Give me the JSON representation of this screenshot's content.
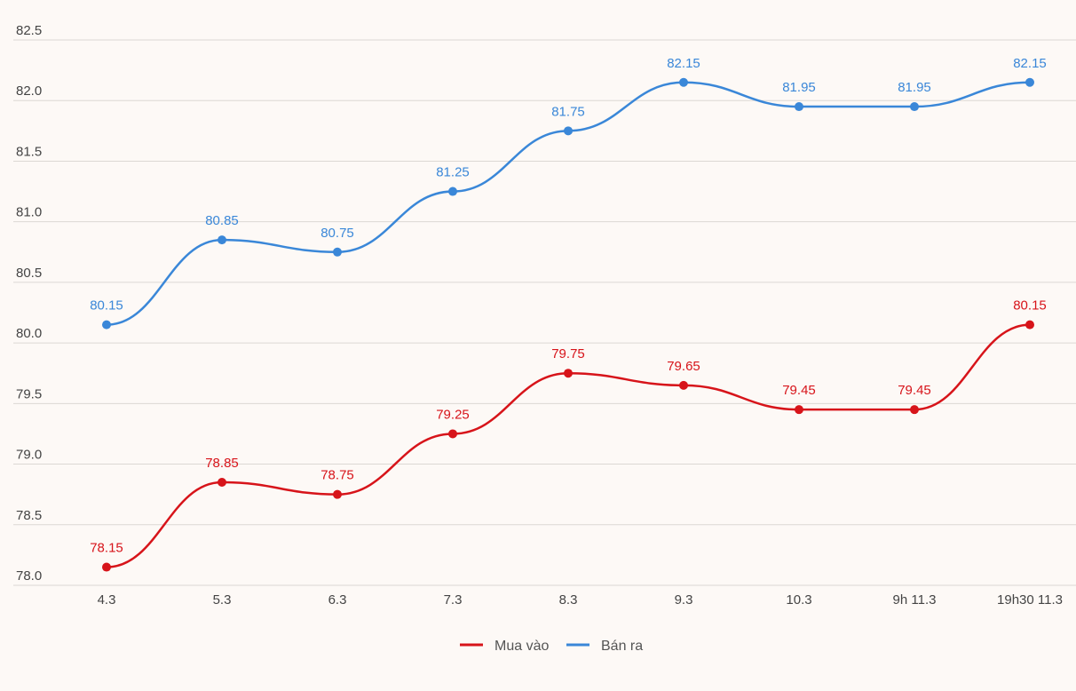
{
  "chart_data": {
    "type": "line",
    "categories": [
      "4.3",
      "5.3",
      "6.3",
      "7.3",
      "8.3",
      "9.3",
      "10.3",
      "9h 11.3",
      "19h30 11.3"
    ],
    "series": [
      {
        "name": "Mua vào",
        "color": "#d7141a",
        "values": [
          78.15,
          78.85,
          78.75,
          79.25,
          79.75,
          79.65,
          79.45,
          79.45,
          80.15
        ],
        "labels": [
          "78.15",
          "78.85",
          "78.75",
          "79.25",
          "79.75",
          "79.65",
          "79.45",
          "79.45",
          "80.15"
        ]
      },
      {
        "name": "Bán ra",
        "color": "#3a87d8",
        "values": [
          80.15,
          80.85,
          80.75,
          81.25,
          81.75,
          82.15,
          81.95,
          81.95,
          82.15
        ],
        "labels": [
          "80.15",
          "80.85",
          "80.75",
          "81.25",
          "81.75",
          "82.15",
          "81.95",
          "81.95",
          "82.15"
        ]
      }
    ],
    "yticks": [
      "78.0",
      "78.5",
      "79.0",
      "79.5",
      "80.0",
      "80.5",
      "81.0",
      "81.5",
      "82.0",
      "82.5"
    ],
    "ylim": [
      78.0,
      82.5
    ],
    "grid": true,
    "legend": "bottom-center"
  }
}
